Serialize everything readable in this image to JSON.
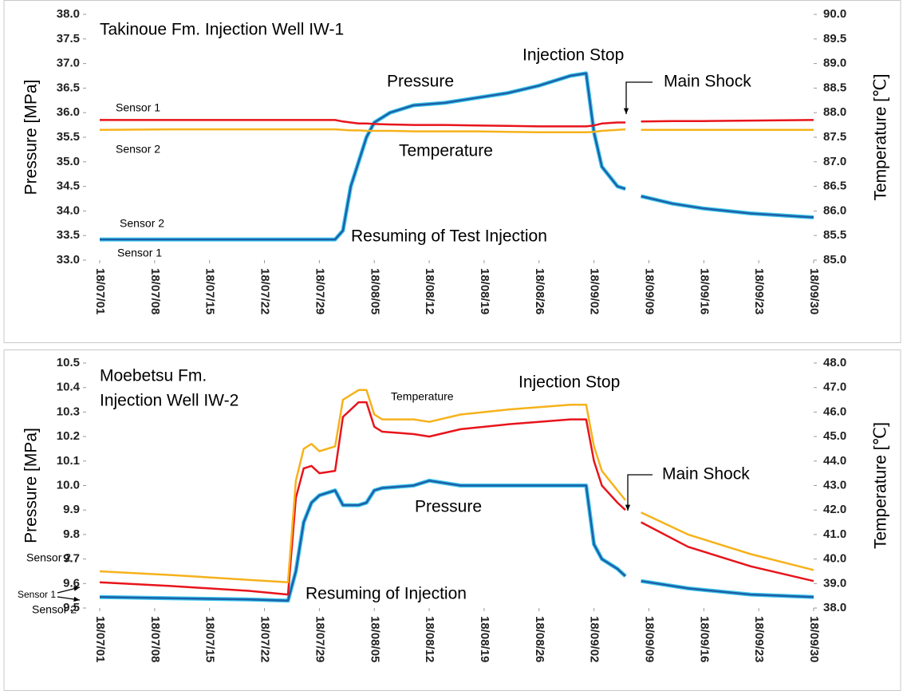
{
  "chart_data": [
    {
      "type": "line",
      "title": [
        "Takinoue Fm. Injection Well IW-1"
      ],
      "ylabel": "Pressure [MPa]",
      "y2label": "Temperature [℃]",
      "annotations": [
        "Injection Stop",
        "Pressure",
        "Main Shock",
        "Sensor 1",
        "Sensor 2",
        "Temperature",
        "Sensor 2",
        "Resuming of Test Injection",
        "Sensor 1"
      ],
      "x": [
        "18/07/01",
        "18/07/10",
        "18/07/20",
        "18/07/31",
        "18/08/01",
        "18/08/02",
        "18/08/03",
        "18/08/04",
        "18/08/05",
        "18/08/07",
        "18/08/10",
        "18/08/14",
        "18/08/18",
        "18/08/22",
        "18/08/26",
        "18/08/30",
        "18/09/01",
        "18/09/02",
        "18/09/03",
        "18/09/05",
        "18/09/06",
        "18/09/07",
        "18/09/08",
        "18/09/12",
        "18/09/16",
        "18/09/22",
        "18/09/30"
      ],
      "xticks": [
        "18/07/01",
        "18/07/08",
        "18/07/15",
        "18/07/22",
        "18/07/29",
        "18/08/05",
        "18/08/12",
        "18/08/19",
        "18/08/26",
        "18/09/02",
        "18/09/09",
        "18/09/16",
        "18/09/23",
        "18/09/30"
      ],
      "ylim": [
        33,
        38
      ],
      "yticks": [
        {
          "value": 33,
          "label": "33.0"
        },
        33.5,
        {
          "value": 34,
          "label": "34.0"
        },
        34.5,
        {
          "value": 35,
          "label": "35.0"
        },
        35.5,
        {
          "value": 36,
          "label": "36.0"
        },
        36.5,
        {
          "value": 37,
          "label": "37.0"
        },
        37.5,
        {
          "value": 38,
          "label": "38.0"
        }
      ],
      "y2lim": [
        85,
        90
      ],
      "y2ticks": [
        {
          "value": 85,
          "label": "85.0"
        },
        85.5,
        {
          "value": 86,
          "label": "86.0"
        },
        86.5,
        {
          "value": 87,
          "label": "87.0"
        },
        87.5,
        {
          "value": 88,
          "label": "88.0"
        },
        88.5,
        {
          "value": 89,
          "label": "89.0"
        },
        89.5,
        {
          "value": 90,
          "label": "90.0"
        }
      ],
      "series": [
        {
          "color": "#3cc8ee",
          "axis": "y",
          "values": [
            33.42,
            33.42,
            33.42,
            33.42,
            33.6,
            34.5,
            35.0,
            35.5,
            35.8,
            36.0,
            36.15,
            36.2,
            36.3,
            36.4,
            36.55,
            36.75,
            36.8,
            35.6,
            34.9,
            34.5,
            34.45,
            null,
            34.3,
            34.15,
            34.05,
            33.95,
            33.87
          ]
        },
        {
          "color": "#1f5fa8",
          "axis": "y",
          "values": [
            33.42,
            33.42,
            33.42,
            33.42,
            33.6,
            34.5,
            35.0,
            35.5,
            35.8,
            36.0,
            36.15,
            36.2,
            36.3,
            36.4,
            36.55,
            36.75,
            36.8,
            35.6,
            34.9,
            34.5,
            34.45,
            null,
            34.3,
            34.15,
            34.05,
            33.95,
            33.87
          ]
        },
        {
          "color": "#e8141b",
          "axis": "y2",
          "values": [
            87.85,
            87.85,
            87.85,
            87.85,
            87.82,
            87.8,
            87.78,
            87.78,
            87.77,
            87.76,
            87.75,
            87.75,
            87.74,
            87.73,
            87.72,
            87.72,
            87.72,
            87.74,
            87.78,
            87.8,
            87.8,
            null,
            87.82,
            87.83,
            87.83,
            87.84,
            87.85
          ]
        },
        {
          "color": "#f6b21b",
          "axis": "y2",
          "values": [
            87.65,
            87.66,
            87.66,
            87.66,
            87.65,
            87.64,
            87.64,
            87.63,
            87.63,
            87.63,
            87.62,
            87.62,
            87.62,
            87.61,
            87.6,
            87.6,
            87.6,
            87.61,
            87.63,
            87.65,
            87.66,
            null,
            87.65,
            87.65,
            87.65,
            87.65,
            87.65
          ]
        }
      ]
    },
    {
      "type": "line",
      "title": [
        "Moebetsu Fm.",
        "Injection Well IW-2"
      ],
      "ylabel": "Pressure [MPa]",
      "y2label": "Temperature [℃]",
      "annotations": [
        "Injection Stop",
        "Temperature",
        "Main Shock",
        "Pressure",
        "Sensor 2",
        "Sensor 1",
        "Resuming of Injection",
        "Sensor 2"
      ],
      "x": [
        "18/07/01",
        "18/07/10",
        "18/07/20",
        "18/07/25",
        "18/07/26",
        "18/07/27",
        "18/07/28",
        "18/07/29",
        "18/07/31",
        "18/08/01",
        "18/08/03",
        "18/08/04",
        "18/08/05",
        "18/08/06",
        "18/08/10",
        "18/08/12",
        "18/08/16",
        "18/08/22",
        "18/08/30",
        "18/09/01",
        "18/09/02",
        "18/09/03",
        "18/09/05",
        "18/09/06",
        "18/09/07",
        "18/09/08",
        "18/09/14",
        "18/09/22",
        "18/09/30"
      ],
      "xticks": [
        "18/07/01",
        "18/07/08",
        "18/07/15",
        "18/07/22",
        "18/07/29",
        "18/08/05",
        "18/08/12",
        "18/08/19",
        "18/08/26",
        "18/09/02",
        "18/09/09",
        "18/09/16",
        "18/09/23",
        "18/09/30"
      ],
      "ylim": [
        9.5,
        10.5
      ],
      "yticks": [
        9.5,
        9.6,
        9.7,
        9.8,
        9.9,
        {
          "value": 10,
          "label": "10.0"
        },
        10.1,
        10.2,
        10.3,
        10.4,
        10.5
      ],
      "y2lim": [
        38,
        48
      ],
      "y2ticks": [
        {
          "value": 38,
          "label": "38.0"
        },
        {
          "value": 39,
          "label": "39.0"
        },
        {
          "value": 40,
          "label": "40.0"
        },
        {
          "value": 41,
          "label": "41.0"
        },
        {
          "value": 42,
          "label": "42.0"
        },
        {
          "value": 43,
          "label": "43.0"
        },
        {
          "value": 44,
          "label": "44.0"
        },
        {
          "value": 45,
          "label": "45.0"
        },
        {
          "value": 46,
          "label": "46.0"
        },
        {
          "value": 47,
          "label": "47.0"
        },
        {
          "value": 48,
          "label": "48.0"
        }
      ],
      "series": [
        {
          "color": "#3cc8ee",
          "axis": "y",
          "values": [
            9.545,
            9.54,
            9.535,
            9.53,
            9.65,
            9.85,
            9.93,
            9.96,
            9.98,
            9.92,
            9.92,
            9.93,
            9.98,
            9.99,
            10.0,
            10.02,
            10.0,
            10.0,
            10.0,
            10.0,
            9.76,
            9.7,
            9.66,
            9.63,
            null,
            9.61,
            9.58,
            9.555,
            9.545
          ]
        },
        {
          "color": "#1f5fa8",
          "axis": "y",
          "values": [
            9.545,
            9.54,
            9.535,
            9.53,
            9.65,
            9.85,
            9.93,
            9.96,
            9.98,
            9.92,
            9.92,
            9.93,
            9.98,
            9.99,
            10.0,
            10.02,
            10.0,
            10.0,
            10.0,
            10.0,
            9.76,
            9.7,
            9.66,
            9.63,
            null,
            9.61,
            9.58,
            9.555,
            9.545
          ]
        },
        {
          "color": "#e8141b",
          "axis": "y2",
          "values": [
            39.05,
            38.9,
            38.7,
            38.55,
            42.5,
            43.7,
            43.8,
            43.5,
            43.6,
            45.8,
            46.4,
            46.4,
            45.4,
            45.2,
            45.1,
            45.0,
            45.3,
            45.5,
            45.7,
            45.7,
            44.0,
            43.0,
            42.3,
            42.0,
            null,
            41.5,
            40.5,
            39.7,
            39.1
          ]
        },
        {
          "color": "#f6b21b",
          "axis": "y2",
          "values": [
            39.5,
            39.35,
            39.15,
            39.05,
            43.2,
            44.5,
            44.7,
            44.4,
            44.6,
            46.5,
            46.9,
            46.9,
            45.9,
            45.7,
            45.7,
            45.6,
            45.9,
            46.1,
            46.3,
            46.3,
            44.6,
            43.6,
            42.8,
            42.4,
            null,
            41.9,
            41.0,
            40.2,
            39.55
          ]
        }
      ]
    }
  ]
}
